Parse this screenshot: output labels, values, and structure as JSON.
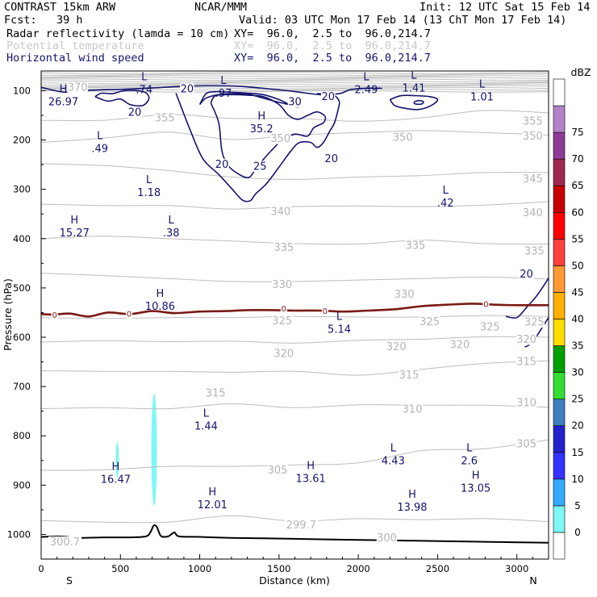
{
  "header": {
    "model": "CONTRAST 15km ARW",
    "org": "NCAR/MMM",
    "init": "Init: 12 UTC Sat 15 Feb 14",
    "fcst": "Fcst:   39 h",
    "valid": "Valid: 03 UTC Mon 17 Feb 14 (13 ChT Mon 17 Feb 14)"
  },
  "fields": [
    {
      "name": "Radar reflectivity (lamda = 10 cm)",
      "xy": "XY=  96.0,  2.5 to  96.0,214.7"
    },
    {
      "name": "Potential temperature",
      "xy": "XY=  96.0,  2.5 to  96.0,214.7"
    },
    {
      "name": "Horizontal wind speed",
      "xy": "XY=  96.0,  2.5 to  96.0,214.7"
    }
  ],
  "colors": {
    "theta": "#bdbdbd",
    "wind": "#14146e",
    "zero": "#7a1a14",
    "terrain": "#000000",
    "refl": "#7ef7f7"
  },
  "chart_data": {
    "type": "cross-section",
    "xlabel": "Distance (km)",
    "ylabel": "Pressure (hPa)",
    "xlim": [
      0,
      3200
    ],
    "ylim": [
      1050,
      60
    ],
    "xticks": [
      0,
      500,
      1000,
      1500,
      2000,
      2500,
      3000
    ],
    "yticks": [
      100,
      200,
      300,
      400,
      500,
      600,
      700,
      800,
      900,
      1000
    ],
    "endpoints": {
      "left": "S",
      "right": "N"
    },
    "colorbar": {
      "unit": "dBZ",
      "levels": [
        0,
        5,
        10,
        15,
        20,
        25,
        30,
        35,
        40,
        45,
        50,
        55,
        60,
        65,
        70,
        75
      ],
      "colors": [
        "#ffffff",
        "#7ef7f7",
        "#33aaff",
        "#3333ff",
        "#2222cc",
        "#3d7fbf",
        "#33dd33",
        "#00a000",
        "#ffdd00",
        "#ffb000",
        "#ff9933",
        "#ff4040",
        "#ff0000",
        "#c80000",
        "#a02850",
        "#8c3c96",
        "#b482c8",
        "#ffffff"
      ]
    },
    "theta_contours": [
      {
        "level": 300,
        "p": [
          972,
          975,
          975,
          962,
          973,
          968,
          970,
          968,
          974
        ]
      },
      {
        "level": 305,
        "p": [
          870,
          869,
          862,
          862,
          859,
          855,
          830,
          826,
          808
        ]
      },
      {
        "level": 310,
        "p": [
          745,
          743,
          745,
          735,
          743,
          737,
          738,
          738,
          742
        ]
      },
      {
        "level": 315,
        "p": [
          668,
          669,
          669,
          671,
          669,
          677,
          665,
          653,
          648
        ]
      },
      {
        "level": 320,
        "p": [
          610,
          607,
          609,
          608,
          612,
          606,
          604,
          599,
          600
        ]
      },
      {
        "level": 325,
        "p": [
          560,
          562,
          560,
          560,
          558,
          559,
          559,
          556,
          558
        ]
      },
      {
        "level": 330,
        "p": [
          470,
          475,
          481,
          487,
          487,
          484,
          481,
          478,
          482
        ]
      },
      {
        "level": 335,
        "p": [
          400,
          395,
          400,
          405,
          410,
          411,
          403,
          410,
          411
        ]
      },
      {
        "level": 340,
        "p": [
          330,
          333,
          333,
          340,
          335,
          334,
          335,
          332,
          325
        ]
      },
      {
        "level": 345,
        "p": [
          248,
          252,
          262,
          275,
          280,
          275,
          272,
          266,
          266
        ]
      },
      {
        "level": 350,
        "p": [
          205,
          196,
          184,
          199,
          190,
          185,
          181,
          185,
          190
        ]
      },
      {
        "level": 355,
        "p": [
          160,
          160,
          148,
          156,
          156,
          162,
          155,
          140,
          145
        ]
      }
    ],
    "theta_labels": [
      {
        "text": "300.7",
        "x": 150,
        "p": 1014
      },
      {
        "text": "305",
        "x": 1490,
        "p": 868
      },
      {
        "text": "299.7",
        "x": 1640,
        "p": 980
      },
      {
        "text": "300",
        "x": 2180,
        "p": 1006
      },
      {
        "text": "305",
        "x": 3060,
        "p": 815
      },
      {
        "text": "310",
        "x": 2340,
        "p": 745
      },
      {
        "text": "310",
        "x": 3060,
        "p": 732
      },
      {
        "text": "315",
        "x": 1100,
        "p": 712
      },
      {
        "text": "315",
        "x": 2320,
        "p": 675
      },
      {
        "text": "315",
        "x": 3060,
        "p": 648
      },
      {
        "text": "320",
        "x": 1530,
        "p": 632
      },
      {
        "text": "320",
        "x": 2240,
        "p": 618
      },
      {
        "text": "320",
        "x": 2640,
        "p": 614
      },
      {
        "text": "320",
        "x": 3060,
        "p": 603
      },
      {
        "text": "325",
        "x": 1520,
        "p": 566
      },
      {
        "text": "325",
        "x": 2450,
        "p": 567
      },
      {
        "text": "325",
        "x": 2830,
        "p": 578
      },
      {
        "text": "325",
        "x": 3110,
        "p": 568
      },
      {
        "text": "330",
        "x": 1520,
        "p": 492
      },
      {
        "text": "330",
        "x": 2290,
        "p": 512
      },
      {
        "text": "335",
        "x": 1530,
        "p": 417
      },
      {
        "text": "335",
        "x": 2360,
        "p": 413
      },
      {
        "text": "335",
        "x": 3110,
        "p": 424
      },
      {
        "text": "340",
        "x": 1510,
        "p": 344
      },
      {
        "text": "340",
        "x": 3100,
        "p": 346
      },
      {
        "text": "345",
        "x": 3100,
        "p": 278
      },
      {
        "text": "350",
        "x": 1510,
        "p": 196
      },
      {
        "text": "350",
        "x": 2280,
        "p": 193
      },
      {
        "text": "350",
        "x": 3100,
        "p": 191
      },
      {
        "text": "355",
        "x": 780,
        "p": 154
      },
      {
        "text": "355",
        "x": 3100,
        "p": 161
      },
      {
        "text": "370",
        "x": 230,
        "p": 92
      }
    ],
    "wind_labels": [
      {
        "text": "20",
        "x": 920,
        "p": 95
      },
      {
        "text": "20",
        "x": 590,
        "p": 143
      },
      {
        "text": "20",
        "x": 1810,
        "p": 111
      },
      {
        "text": "30",
        "x": 1600,
        "p": 121
      },
      {
        "text": "20",
        "x": 1830,
        "p": 237
      },
      {
        "text": "25",
        "x": 1380,
        "p": 252
      },
      {
        "text": "20",
        "x": 1140,
        "p": 248
      },
      {
        "text": "20",
        "x": 3060,
        "p": 471
      }
    ],
    "zero_labels": [
      {
        "text": "0",
        "x": 85,
        "p": 554
      },
      {
        "text": "0",
        "x": 555,
        "p": 552
      },
      {
        "text": "0",
        "x": 1530,
        "p": 541
      },
      {
        "text": "0",
        "x": 1790,
        "p": 546
      },
      {
        "text": "0",
        "x": 2805,
        "p": 532
      }
    ],
    "hl_labels": [
      {
        "letter": "H",
        "value": "26.97",
        "x": 140,
        "p": 110
      },
      {
        "letter": "L",
        "value": ".74",
        "x": 650,
        "p": 85
      },
      {
        "letter": "L",
        "value": ".97",
        "x": 1150,
        "p": 93
      },
      {
        "letter": "L",
        "value": "2.49",
        "x": 2050,
        "p": 85
      },
      {
        "letter": "L",
        "value": "1.41",
        "x": 2350,
        "p": 82
      },
      {
        "letter": "L",
        "value": "1.01",
        "x": 2780,
        "p": 100
      },
      {
        "letter": "H",
        "value": "35.2",
        "x": 1390,
        "p": 165
      },
      {
        "letter": "L",
        "value": ".49",
        "x": 370,
        "p": 205
      },
      {
        "letter": "L",
        "value": "1.18",
        "x": 680,
        "p": 294
      },
      {
        "letter": "L",
        "value": ".42",
        "x": 2550,
        "p": 315
      },
      {
        "letter": "H",
        "value": "15.27",
        "x": 210,
        "p": 376
      },
      {
        "letter": "L",
        "value": ".38",
        "x": 820,
        "p": 376
      },
      {
        "letter": "H",
        "value": "10.86",
        "x": 750,
        "p": 525
      },
      {
        "letter": "L",
        "value": "5.14",
        "x": 1880,
        "p": 571
      },
      {
        "letter": "L",
        "value": "1.44",
        "x": 1040,
        "p": 768
      },
      {
        "letter": "L",
        "value": "4.43",
        "x": 2220,
        "p": 838
      },
      {
        "letter": "L",
        "value": "2.6",
        "x": 2700,
        "p": 838
      },
      {
        "letter": "H",
        "value": "16.47",
        "x": 470,
        "p": 876
      },
      {
        "letter": "H",
        "value": "13.61",
        "x": 1700,
        "p": 874
      },
      {
        "letter": "H",
        "value": "12.01",
        "x": 1080,
        "p": 927
      },
      {
        "letter": "H",
        "value": "13.98",
        "x": 2340,
        "p": 932
      },
      {
        "letter": "H",
        "value": "13.05",
        "x": 2740,
        "p": 894
      }
    ],
    "wind_contours": [
      {
        "name": "upper-band",
        "pts": [
          [
            0,
            93
          ],
          [
            150,
            103
          ],
          [
            320,
            99
          ],
          [
            520,
            97
          ],
          [
            720,
            94
          ],
          [
            900,
            91
          ],
          [
            1080,
            90
          ],
          [
            1250,
            91
          ],
          [
            1430,
            96
          ],
          [
            1580,
            101
          ],
          [
            1760,
            108
          ],
          [
            1880,
            106
          ],
          [
            1950,
            98
          ],
          [
            2050,
            95
          ],
          [
            2150,
            95
          ]
        ]
      },
      {
        "name": "jet-core",
        "pts": [
          [
            850,
            105
          ],
          [
            940,
            180
          ],
          [
            1020,
            238
          ],
          [
            1120,
            270
          ],
          [
            1200,
            298
          ],
          [
            1270,
            322
          ],
          [
            1320,
            323
          ],
          [
            1350,
            310
          ],
          [
            1420,
            289
          ],
          [
            1500,
            255
          ],
          [
            1580,
            220
          ],
          [
            1630,
            205
          ],
          [
            1700,
            205
          ],
          [
            1740,
            215
          ],
          [
            1780,
            205
          ],
          [
            1820,
            182
          ],
          [
            1850,
            165
          ],
          [
            1875,
            135
          ],
          [
            1880,
            122
          ],
          [
            1850,
            110
          ],
          [
            1790,
            107
          ],
          [
            1740,
            106
          ]
        ]
      },
      {
        "name": "jet-inner-25",
        "pts": [
          [
            1070,
            125
          ],
          [
            1120,
            165
          ],
          [
            1140,
            222
          ],
          [
            1180,
            252
          ],
          [
            1250,
            270
          ],
          [
            1310,
            276
          ],
          [
            1350,
            260
          ],
          [
            1400,
            240
          ],
          [
            1450,
            222
          ],
          [
            1520,
            200
          ],
          [
            1600,
            188
          ],
          [
            1680,
            192
          ],
          [
            1720,
            175
          ],
          [
            1780,
            165
          ],
          [
            1790,
            152
          ],
          [
            1740,
            143
          ],
          [
            1680,
            150
          ],
          [
            1620,
            158
          ],
          [
            1560,
            150
          ],
          [
            1500,
            128
          ],
          [
            1400,
            112
          ],
          [
            1300,
            109
          ],
          [
            1200,
            108
          ],
          [
            1100,
            110
          ],
          [
            1070,
            125
          ]
        ]
      },
      {
        "name": "jet-inner-30",
        "pts": [
          [
            1000,
            128
          ],
          [
            1040,
            115
          ],
          [
            1120,
            108
          ],
          [
            1230,
            106
          ],
          [
            1320,
            108
          ],
          [
            1400,
            115
          ],
          [
            1480,
            122
          ],
          [
            1560,
            128
          ],
          [
            1620,
            133
          ],
          [
            1580,
            130
          ],
          [
            1500,
            118
          ],
          [
            1400,
            108
          ],
          [
            1300,
            105
          ],
          [
            1200,
            103
          ],
          [
            1100,
            102
          ],
          [
            1040,
            106
          ],
          [
            1000,
            128
          ]
        ]
      },
      {
        "name": "left-loop",
        "pts": [
          [
            340,
            112
          ],
          [
            420,
            121
          ],
          [
            500,
            117
          ],
          [
            560,
            128
          ],
          [
            640,
            130
          ],
          [
            680,
            116
          ],
          [
            660,
            104
          ],
          [
            610,
            100
          ],
          [
            520,
            100
          ],
          [
            450,
            106
          ],
          [
            380,
            105
          ],
          [
            340,
            112
          ]
        ]
      },
      {
        "name": "right-loop",
        "pts": [
          [
            2200,
            118
          ],
          [
            2230,
            130
          ],
          [
            2300,
            136
          ],
          [
            2380,
            138
          ],
          [
            2460,
            130
          ],
          [
            2500,
            118
          ],
          [
            2450,
            112
          ],
          [
            2360,
            110
          ],
          [
            2270,
            110
          ],
          [
            2200,
            118
          ]
        ]
      },
      {
        "name": "right-loop-inner",
        "pts": [
          [
            2350,
            123
          ],
          [
            2380,
            120
          ],
          [
            2410,
            122
          ],
          [
            2400,
            127
          ],
          [
            2360,
            127
          ],
          [
            2350,
            123
          ]
        ]
      },
      {
        "name": "right-edge",
        "pts": [
          [
            2930,
            558
          ],
          [
            3000,
            560
          ],
          [
            3060,
            540
          ],
          [
            3120,
            518
          ],
          [
            3160,
            500
          ],
          [
            3200,
            480
          ]
        ]
      },
      {
        "name": "right-edge-2",
        "pts": [
          [
            3200,
            560
          ],
          [
            3160,
            580
          ],
          [
            3120,
            600
          ],
          [
            3080,
            615
          ],
          [
            3050,
            620
          ]
        ]
      }
    ],
    "zero_isotherm": [
      [
        0,
        553
      ],
      [
        80,
        554
      ],
      [
        180,
        552
      ],
      [
        300,
        558
      ],
      [
        420,
        550
      ],
      [
        560,
        553
      ],
      [
        700,
        547
      ],
      [
        840,
        551
      ],
      [
        1000,
        548
      ],
      [
        1160,
        547
      ],
      [
        1300,
        545
      ],
      [
        1460,
        545
      ],
      [
        1600,
        546
      ],
      [
        1760,
        546
      ],
      [
        1900,
        548
      ],
      [
        2060,
        546
      ],
      [
        2240,
        543
      ],
      [
        2400,
        537
      ],
      [
        2560,
        534
      ],
      [
        2720,
        532
      ],
      [
        2860,
        534
      ],
      [
        3000,
        535
      ],
      [
        3200,
        535
      ]
    ],
    "terrain": [
      [
        0,
        1005
      ],
      [
        120,
        1004
      ],
      [
        240,
        1007
      ],
      [
        400,
        1006
      ],
      [
        560,
        1006
      ],
      [
        660,
        1004
      ],
      [
        690,
        995
      ],
      [
        710,
        982
      ],
      [
        730,
        985
      ],
      [
        755,
        1003
      ],
      [
        800,
        1004
      ],
      [
        840,
        996
      ],
      [
        870,
        1004
      ],
      [
        1000,
        1005
      ],
      [
        1200,
        1007
      ],
      [
        1400,
        1008
      ],
      [
        1600,
        1009
      ],
      [
        1800,
        1010
      ],
      [
        2000,
        1011
      ],
      [
        2200,
        1012
      ],
      [
        2400,
        1013
      ],
      [
        2600,
        1014
      ],
      [
        2800,
        1015
      ],
      [
        3000,
        1016
      ],
      [
        3200,
        1017
      ]
    ],
    "reflectivity_cells": [
      {
        "x_min": 470,
        "x_max": 490,
        "p_min": 812,
        "p_max": 885
      },
      {
        "x_min": 695,
        "x_max": 730,
        "p_min": 715,
        "p_max": 942
      }
    ]
  }
}
